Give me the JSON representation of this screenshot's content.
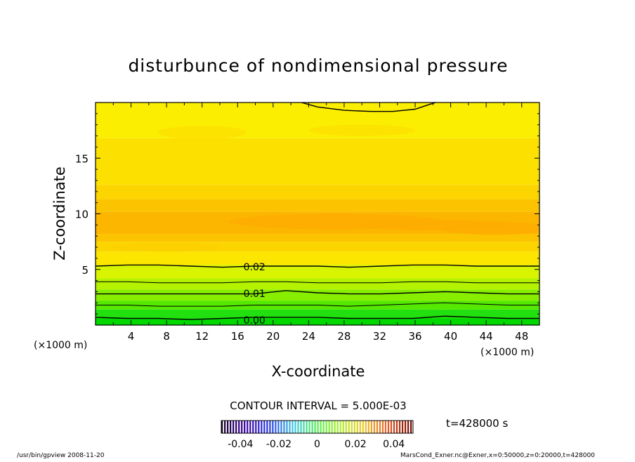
{
  "chart_data": {
    "type": "contour",
    "title": "disturbunce of nondimensional pressure",
    "xlabel": "X-coordinate",
    "ylabel": "Z-coordinate",
    "x_unit_left": "(×1000 m)",
    "x_unit_right": "(×1000 m)",
    "xlim": [
      0,
      50
    ],
    "ylim": [
      0,
      20
    ],
    "x_ticks": [
      "4",
      "8",
      "12",
      "16",
      "20",
      "24",
      "28",
      "32",
      "36",
      "40",
      "44",
      "48"
    ],
    "x_tick_values": [
      4,
      8,
      12,
      16,
      20,
      24,
      28,
      32,
      36,
      40,
      44,
      48
    ],
    "y_ticks": [
      "5",
      "10",
      "15"
    ],
    "y_tick_values": [
      5,
      10,
      15
    ],
    "contour_interval_label": "CONTOUR INTERVAL = 5.000E-03",
    "time_label": "t=428000 s",
    "contour_labels": [
      {
        "text": "0.02",
        "x": 17.9,
        "z": 5.3
      },
      {
        "text": "0.01",
        "x": 17.9,
        "z": 2.9
      },
      {
        "text": "0.00",
        "x": 17.9,
        "z": 0.5
      }
    ],
    "colorbar": {
      "min": -0.05,
      "max": 0.05,
      "tick_labels": [
        "-0.04",
        "-0.02",
        "0",
        "0.02",
        "0.04"
      ],
      "tick_values": [
        -0.04,
        -0.02,
        0,
        0.02,
        0.04
      ]
    },
    "field_bands": [
      {
        "z0": 0,
        "z1": 0.6,
        "color": "#00d800"
      },
      {
        "z0": 0.6,
        "z1": 1.4,
        "color": "#22e010"
      },
      {
        "z0": 1.4,
        "z1": 2.2,
        "color": "#55e800"
      },
      {
        "z0": 2.2,
        "z1": 3.2,
        "color": "#88ee00"
      },
      {
        "z0": 3.2,
        "z1": 4.2,
        "color": "#b4f200"
      },
      {
        "z0": 4.2,
        "z1": 5.4,
        "color": "#d8f400"
      },
      {
        "z0": 5.4,
        "z1": 6.6,
        "color": "#fce600"
      },
      {
        "z0": 6.6,
        "z1": 7.5,
        "color": "#fcd400"
      },
      {
        "z0": 7.5,
        "z1": 8.2,
        "color": "#fcc400"
      },
      {
        "z0": 8.2,
        "z1": 10.2,
        "color": "#fcb600"
      },
      {
        "z0": 10.2,
        "z1": 11.3,
        "color": "#fcc400"
      },
      {
        "z0": 11.3,
        "z1": 12.6,
        "color": "#fcd400"
      },
      {
        "z0": 12.6,
        "z1": 16.8,
        "color": "#fce000"
      },
      {
        "z0": 16.8,
        "z1": 20,
        "color": "#fcee00"
      }
    ],
    "contour_lines": [
      {
        "level": "0.00",
        "z": [
          0.7,
          0.6,
          0.6,
          0.5,
          0.6,
          0.7,
          0.7,
          0.7,
          0.6,
          0.6,
          0.6,
          0.8,
          0.7,
          0.6,
          0.6
        ],
        "width": 1.4
      },
      {
        "level": "0.005",
        "z": [
          1.8,
          1.8,
          1.7,
          1.7,
          1.7,
          1.8,
          1.8,
          1.8,
          1.7,
          1.8,
          1.9,
          2.0,
          1.9,
          1.8,
          1.8
        ],
        "width": 1
      },
      {
        "level": "0.01",
        "z": [
          2.8,
          2.8,
          2.8,
          2.8,
          2.8,
          2.8,
          3.1,
          2.9,
          2.8,
          2.8,
          2.9,
          3.0,
          2.9,
          2.8,
          2.8
        ],
        "width": 1.4
      },
      {
        "level": "0.015",
        "z": [
          3.9,
          3.9,
          3.8,
          3.8,
          3.8,
          3.9,
          3.9,
          3.8,
          3.8,
          3.8,
          3.9,
          3.9,
          3.8,
          3.8,
          3.8
        ],
        "width": 1
      },
      {
        "level": "0.02",
        "z": [
          5.3,
          5.4,
          5.4,
          5.3,
          5.2,
          5.3,
          5.3,
          5.3,
          5.2,
          5.3,
          5.4,
          5.4,
          5.3,
          5.3,
          5.3
        ],
        "width": 1.4
      }
    ],
    "top_contour": [
      [
        23.2,
        20
      ],
      [
        25,
        19.6
      ],
      [
        28,
        19.3
      ],
      [
        31,
        19.2
      ],
      [
        33.5,
        19.2
      ],
      [
        36,
        19.4
      ],
      [
        37.5,
        19.8
      ],
      [
        38.3,
        20
      ]
    ]
  },
  "footer": {
    "left": "/usr/bin/gpview   2008-11-20",
    "right": "MarsCond_Exner.nc@Exner,x=0:50000,z=0:20000,t=428000"
  }
}
